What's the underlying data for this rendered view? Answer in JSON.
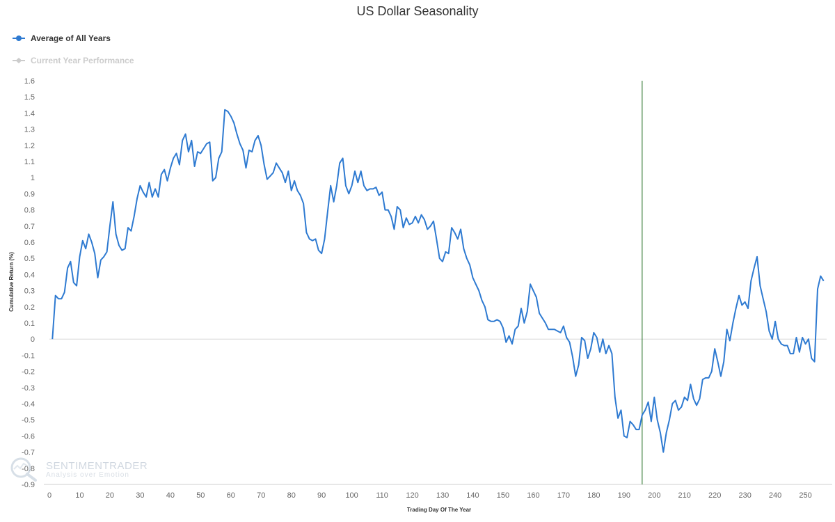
{
  "chart_data": {
    "type": "line",
    "title": "US Dollar Seasonality",
    "xlabel": "Trading Day Of The Year",
    "ylabel": "Cumulative Return (%)",
    "xlim": [
      0,
      257
    ],
    "ylim": [
      -0.9,
      1.6
    ],
    "xticks": [
      0,
      10,
      20,
      30,
      40,
      50,
      60,
      70,
      80,
      90,
      100,
      110,
      120,
      130,
      140,
      150,
      160,
      170,
      180,
      190,
      200,
      210,
      220,
      230,
      240,
      250
    ],
    "yticks": [
      1.6,
      1.5,
      1.4,
      1.3,
      1.2,
      1.1,
      1,
      0.9,
      0.8,
      0.7,
      0.6,
      0.5,
      0.4,
      0.3,
      0.2,
      0.1,
      0,
      -0.1,
      -0.2,
      -0.3,
      -0.4,
      -0.5,
      -0.6,
      -0.7,
      -0.8,
      -0.9
    ],
    "grid": false,
    "legend_position": "top-left",
    "current_day_marker": 196,
    "series": [
      {
        "name": "Average of All Years",
        "color": "#2e7ad1",
        "visible": true,
        "x": [
          1,
          2,
          3,
          4,
          5,
          6,
          7,
          8,
          9,
          10,
          11,
          12,
          13,
          14,
          15,
          16,
          17,
          18,
          19,
          20,
          21,
          22,
          23,
          24,
          25,
          26,
          27,
          28,
          29,
          30,
          31,
          32,
          33,
          34,
          35,
          36,
          37,
          38,
          39,
          40,
          41,
          42,
          43,
          44,
          45,
          46,
          47,
          48,
          49,
          50,
          51,
          52,
          53,
          54,
          55,
          56,
          57,
          58,
          59,
          60,
          61,
          62,
          63,
          64,
          65,
          66,
          67,
          68,
          69,
          70,
          71,
          72,
          73,
          74,
          75,
          76,
          77,
          78,
          79,
          80,
          81,
          82,
          83,
          84,
          85,
          86,
          87,
          88,
          89,
          90,
          91,
          92,
          93,
          94,
          95,
          96,
          97,
          98,
          99,
          100,
          101,
          102,
          103,
          104,
          105,
          106,
          107,
          108,
          109,
          110,
          111,
          112,
          113,
          114,
          115,
          116,
          117,
          118,
          119,
          120,
          121,
          122,
          123,
          124,
          125,
          126,
          127,
          128,
          129,
          130,
          131,
          132,
          133,
          134,
          135,
          136,
          137,
          138,
          139,
          140,
          141,
          142,
          143,
          144,
          145,
          146,
          147,
          148,
          149,
          150,
          151,
          152,
          153,
          154,
          155,
          156,
          157,
          158,
          159,
          160,
          161,
          162,
          163,
          164,
          165,
          166,
          167,
          168,
          169,
          170,
          171,
          172,
          173,
          174,
          175,
          176,
          177,
          178,
          179,
          180,
          181,
          182,
          183,
          184,
          185,
          186,
          187,
          188,
          189,
          190,
          191,
          192,
          193,
          194,
          195,
          196,
          197,
          198,
          199,
          200,
          201,
          202,
          203,
          204,
          205,
          206,
          207,
          208,
          209,
          210,
          211,
          212,
          213,
          214,
          215,
          216,
          217,
          218,
          219,
          220,
          221,
          222,
          223,
          224,
          225,
          226,
          227,
          228,
          229,
          230,
          231,
          232,
          233,
          234,
          235,
          236,
          237,
          238,
          239,
          240,
          241,
          242,
          243,
          244,
          245,
          246,
          247,
          248,
          249,
          250,
          251,
          252,
          253,
          254,
          255,
          256
        ],
        "values": [
          0,
          0.27,
          0.25,
          0.25,
          0.29,
          0.44,
          0.48,
          0.35,
          0.33,
          0.51,
          0.61,
          0.56,
          0.65,
          0.6,
          0.53,
          0.38,
          0.49,
          0.51,
          0.54,
          0.7,
          0.85,
          0.65,
          0.58,
          0.55,
          0.56,
          0.69,
          0.67,
          0.76,
          0.87,
          0.95,
          0.91,
          0.88,
          0.97,
          0.88,
          0.93,
          0.88,
          1.02,
          1.05,
          0.98,
          1.06,
          1.12,
          1.15,
          1.08,
          1.23,
          1.27,
          1.16,
          1.23,
          1.07,
          1.16,
          1.15,
          1.18,
          1.21,
          1.22,
          0.98,
          1.0,
          1.12,
          1.16,
          1.42,
          1.41,
          1.38,
          1.34,
          1.27,
          1.21,
          1.17,
          1.06,
          1.17,
          1.16,
          1.23,
          1.26,
          1.2,
          1.08,
          0.99,
          1.01,
          1.03,
          1.09,
          1.06,
          1.03,
          0.97,
          1.04,
          0.92,
          0.98,
          0.92,
          0.89,
          0.84,
          0.66,
          0.62,
          0.61,
          0.62,
          0.55,
          0.53,
          0.62,
          0.79,
          0.95,
          0.85,
          0.95,
          1.09,
          1.12,
          0.95,
          0.9,
          0.95,
          1.04,
          0.97,
          1.04,
          0.95,
          0.92,
          0.93,
          0.93,
          0.94,
          0.89,
          0.91,
          0.8,
          0.8,
          0.76,
          0.68,
          0.82,
          0.8,
          0.69,
          0.75,
          0.71,
          0.72,
          0.76,
          0.72,
          0.77,
          0.74,
          0.68,
          0.7,
          0.73,
          0.62,
          0.5,
          0.48,
          0.54,
          0.53,
          0.69,
          0.66,
          0.62,
          0.68,
          0.56,
          0.5,
          0.46,
          0.38,
          0.34,
          0.3,
          0.24,
          0.2,
          0.12,
          0.11,
          0.11,
          0.12,
          0.11,
          0.07,
          -0.02,
          0.02,
          -0.03,
          0.06,
          0.08,
          0.19,
          0.1,
          0.17,
          0.34,
          0.3,
          0.26,
          0.16,
          0.13,
          0.1,
          0.06,
          0.06,
          0.06,
          0.05,
          0.04,
          0.08,
          0.01,
          -0.02,
          -0.11,
          -0.23,
          -0.16,
          0.01,
          -0.01,
          -0.12,
          -0.06,
          0.04,
          0.01,
          -0.08,
          0.0,
          -0.09,
          -0.04,
          -0.09,
          -0.36,
          -0.49,
          -0.44,
          -0.6,
          -0.61,
          -0.51,
          -0.53,
          -0.56,
          -0.56,
          -0.47,
          -0.44,
          -0.39,
          -0.51,
          -0.36,
          -0.5,
          -0.58,
          -0.7,
          -0.58,
          -0.5,
          -0.4,
          -0.38,
          -0.44,
          -0.42,
          -0.36,
          -0.38,
          -0.28,
          -0.37,
          -0.41,
          -0.37,
          -0.25,
          -0.24,
          -0.24,
          -0.2,
          -0.06,
          -0.14,
          -0.23,
          -0.14,
          0.06,
          -0.01,
          0.1,
          0.19,
          0.27,
          0.21,
          0.23,
          0.19,
          0.36,
          0.44,
          0.51,
          0.33,
          0.25,
          0.17,
          0.05,
          0.0,
          0.11,
          0.0,
          -0.03,
          -0.04,
          -0.04,
          -0.09,
          -0.09,
          0.01,
          -0.08,
          0.01,
          -0.03,
          0.0,
          -0.12,
          -0.14,
          0.31,
          0.39,
          0.36
        ]
      },
      {
        "name": "Current Year Performance",
        "color": "#cccccc",
        "visible": false,
        "x": [],
        "values": []
      }
    ]
  },
  "colors": {
    "current_day_line": "#1d6b1d",
    "zero_line": "#d8d8d8",
    "legend_inactive": "#cccccc"
  },
  "watermark": {
    "name": "SENTIMENTRADER",
    "tagline": "Analysis over Emotion"
  }
}
